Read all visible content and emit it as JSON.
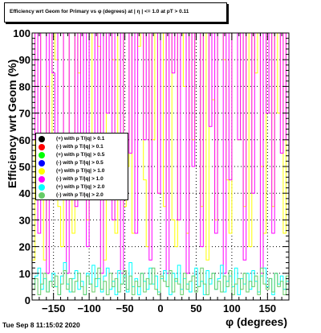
{
  "title": "Efficiency wrt Geom for Primary vs φ (degrees) at | η | <= 1.0 at pT > 0.11",
  "footer": "Tue Sep  8 11:15:02 2020",
  "chart_data": {
    "type": "line",
    "xlabel": "φ (degrees)",
    "ylabel": "Efficiency wrt Geom (%)",
    "xlim": [
      -180,
      180
    ],
    "ylim": [
      0,
      100
    ],
    "x_ticks": [
      -150,
      -100,
      -50,
      0,
      50,
      100,
      150
    ],
    "x_tick_labels": [
      "−150",
      "−100",
      "−50",
      "0",
      "50",
      "100",
      "150"
    ],
    "y_ticks": [
      0,
      10,
      20,
      30,
      40,
      50,
      60,
      70,
      80,
      90,
      100
    ],
    "y_tick_labels": [
      "0",
      "10",
      "20",
      "30",
      "40",
      "50",
      "60",
      "70",
      "80",
      "90",
      "100"
    ],
    "grid": true,
    "legend_position": "left",
    "bin_width": 4,
    "series": [
      {
        "name": "(+) with p T/|q| > 0.1",
        "color": "#000000",
        "values": []
      },
      {
        "name": "(-) with p T/|q| > 0.1",
        "color": "#ff0000",
        "values": []
      },
      {
        "name": "(+) with p T/|q| > 0.5",
        "color": "#00ff00",
        "values": []
      },
      {
        "name": "(-) with p T/|q| > 0.5",
        "color": "#0000ff",
        "values": []
      },
      {
        "name": "(+) with p T/|q| > 1.0",
        "color": "#ffff00",
        "values": [
          15,
          100,
          100,
          45,
          15,
          80,
          60,
          100,
          90,
          35,
          20,
          100,
          100,
          50,
          25,
          100,
          85,
          100,
          40,
          30,
          60,
          100,
          100,
          95,
          40,
          15,
          100,
          100,
          90,
          25,
          100,
          100,
          35,
          50,
          100,
          25,
          100,
          95,
          100,
          45,
          20,
          100,
          60,
          100,
          40,
          100,
          35,
          100,
          100,
          30,
          20,
          100,
          100,
          80,
          25,
          100,
          60,
          100,
          100,
          35,
          100,
          15,
          100,
          75,
          30,
          100,
          100,
          90,
          45,
          25,
          100,
          100,
          60,
          100,
          35,
          100,
          20,
          100,
          85,
          100,
          50,
          25,
          100,
          100,
          35,
          100,
          70,
          100,
          25,
          100
        ]
      },
      {
        "name": "(-) with p T/|q| > 1.0",
        "color": "#ff00ff",
        "values": [
          60,
          100,
          25,
          100,
          100,
          10,
          100,
          85,
          40,
          100,
          100,
          55,
          10,
          100,
          100,
          35,
          100,
          60,
          100,
          20,
          100,
          100,
          45,
          100,
          10,
          100,
          70,
          100,
          30,
          100,
          100,
          10,
          100,
          100,
          55,
          100,
          25,
          100,
          100,
          60,
          100,
          15,
          100,
          100,
          40,
          100,
          100,
          10,
          100,
          85,
          100,
          30,
          100,
          100,
          10,
          100,
          50,
          100,
          100,
          20,
          100,
          100,
          65,
          100,
          25,
          100,
          100,
          10,
          100,
          45,
          100,
          100,
          60,
          100,
          15,
          100,
          100,
          40,
          100,
          100,
          10,
          100,
          70,
          100,
          25,
          100,
          100,
          55,
          100,
          60
        ]
      },
      {
        "name": "(+) with p T/|q| > 2.0",
        "color": "#00ffff",
        "values": [
          6,
          9,
          12,
          4,
          8,
          3,
          7,
          10,
          5,
          2,
          9,
          14,
          6,
          3,
          8,
          11,
          4,
          7,
          2,
          10,
          6,
          13,
          5,
          8,
          3,
          9,
          12,
          4,
          7,
          2,
          11,
          6,
          9,
          3,
          14,
          5,
          8,
          2,
          10,
          7,
          4,
          12,
          6,
          9,
          3,
          8,
          11,
          5,
          2,
          10,
          7,
          13,
          4,
          8,
          6,
          3,
          9,
          12,
          5,
          7,
          2,
          11,
          6,
          10,
          4,
          8,
          13,
          3,
          7,
          9,
          5,
          12,
          2,
          8,
          6,
          10,
          4,
          11,
          7,
          3,
          9,
          12,
          5,
          8,
          2,
          10,
          6,
          9,
          4,
          7
        ]
      },
      {
        "name": "(-) with p T/|q| > 2.0",
        "color": "#66cc66",
        "values": [
          4,
          8,
          2,
          6,
          10,
          3,
          7,
          5,
          9,
          2,
          6,
          11,
          4,
          8,
          3,
          7,
          10,
          5,
          2,
          9,
          6,
          3,
          8,
          12,
          4,
          7,
          2,
          10,
          5,
          8,
          3,
          6,
          11,
          4,
          9,
          2,
          7,
          5,
          10,
          3,
          8,
          6,
          12,
          4,
          2,
          9,
          7,
          5,
          11,
          3,
          8,
          6,
          2,
          10,
          4,
          7,
          9,
          3,
          5,
          12,
          6,
          2,
          8,
          10,
          4,
          7,
          3,
          9,
          5,
          11,
          2,
          6,
          8,
          4,
          10,
          3,
          7,
          5,
          9,
          2,
          12,
          6,
          4,
          8,
          3,
          10,
          5,
          7,
          2,
          9
        ]
      }
    ]
  }
}
